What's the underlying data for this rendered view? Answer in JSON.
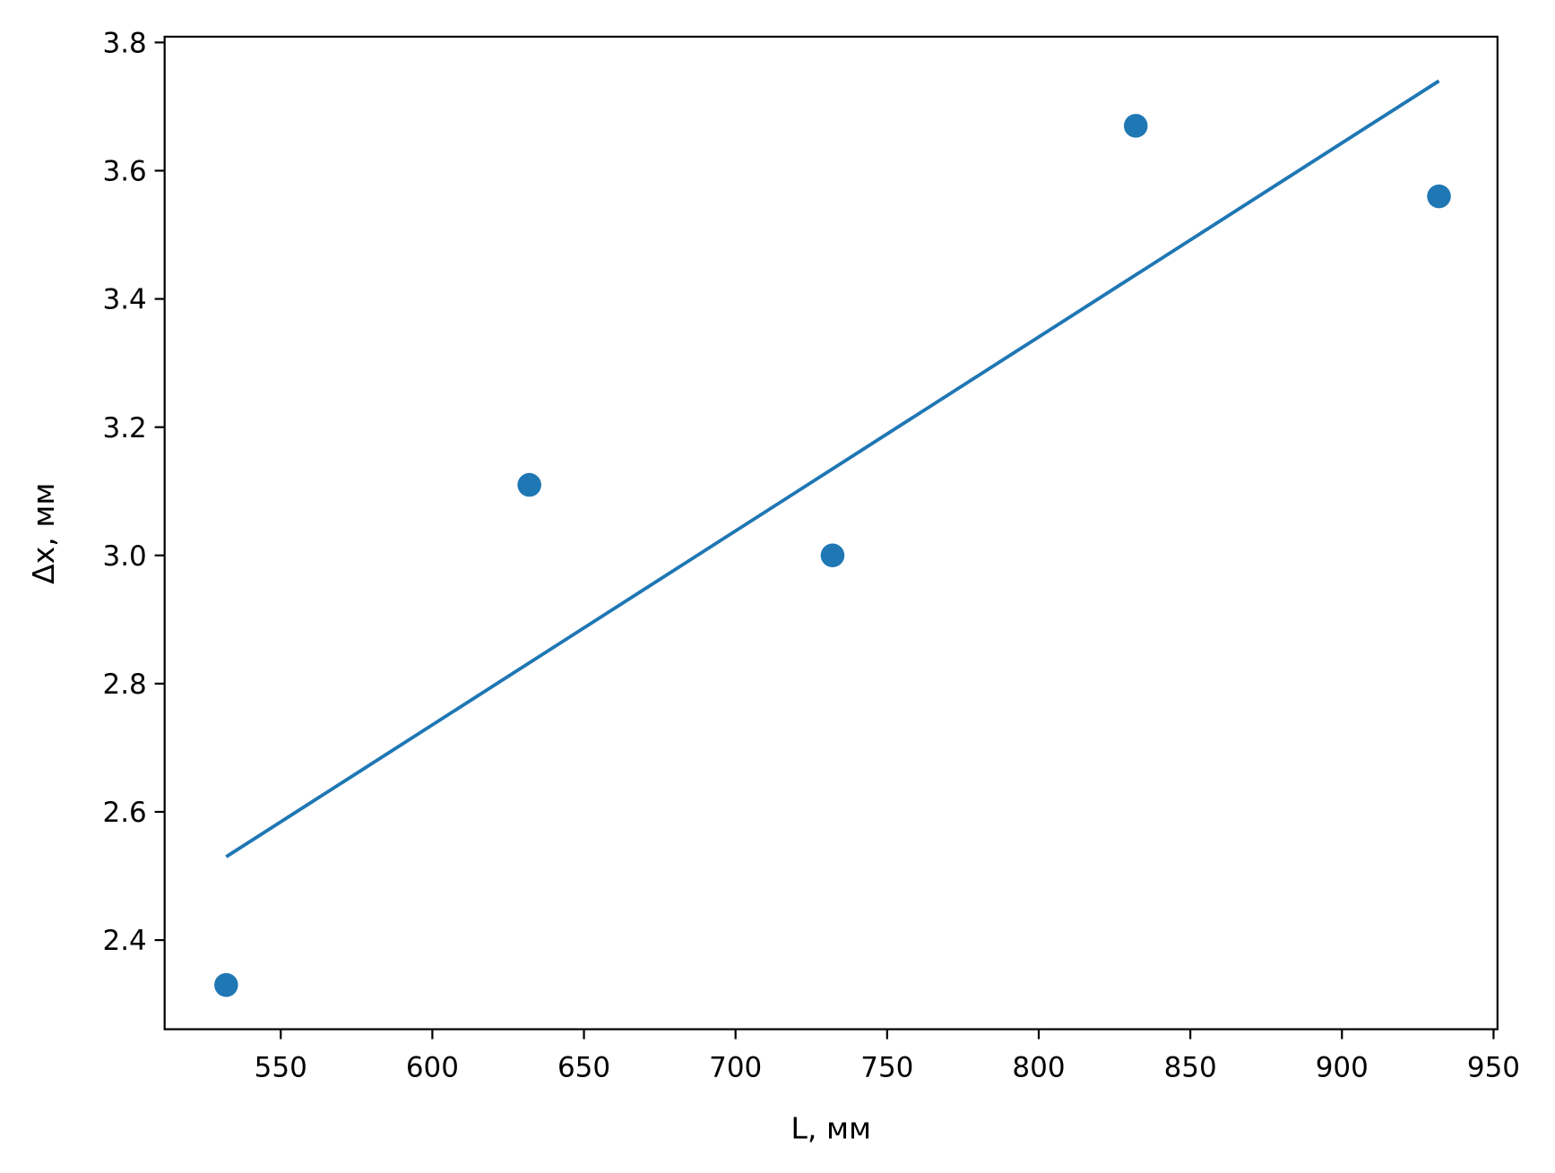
{
  "chart_data": {
    "type": "scatter",
    "title": "",
    "xlabel": "L, мм",
    "ylabel": "Δx, мм",
    "xlim": [
      511.7,
      951.3
    ],
    "ylim": [
      2.261,
      3.809
    ],
    "xticks": [
      550,
      600,
      650,
      700,
      750,
      800,
      850,
      900,
      950
    ],
    "yticks": [
      2.4,
      2.6,
      2.8,
      3.0,
      3.2,
      3.4,
      3.6,
      3.8
    ],
    "xtick_labels": [
      "550",
      "600",
      "650",
      "700",
      "750",
      "800",
      "850",
      "900",
      "950"
    ],
    "ytick_labels": [
      "2.4",
      "2.6",
      "2.8",
      "3.0",
      "3.2",
      "3.4",
      "3.6",
      "3.8"
    ],
    "grid": false,
    "series": [
      {
        "type": "scatter",
        "x": [
          532,
          632,
          732,
          832,
          932
        ],
        "y": [
          2.33,
          3.11,
          3.0,
          3.67,
          3.56
        ],
        "color": "#1f77b4"
      },
      {
        "type": "line",
        "x": [
          532,
          932
        ],
        "y": [
          2.53,
          3.74
        ],
        "color": "#1f77b4"
      }
    ]
  }
}
